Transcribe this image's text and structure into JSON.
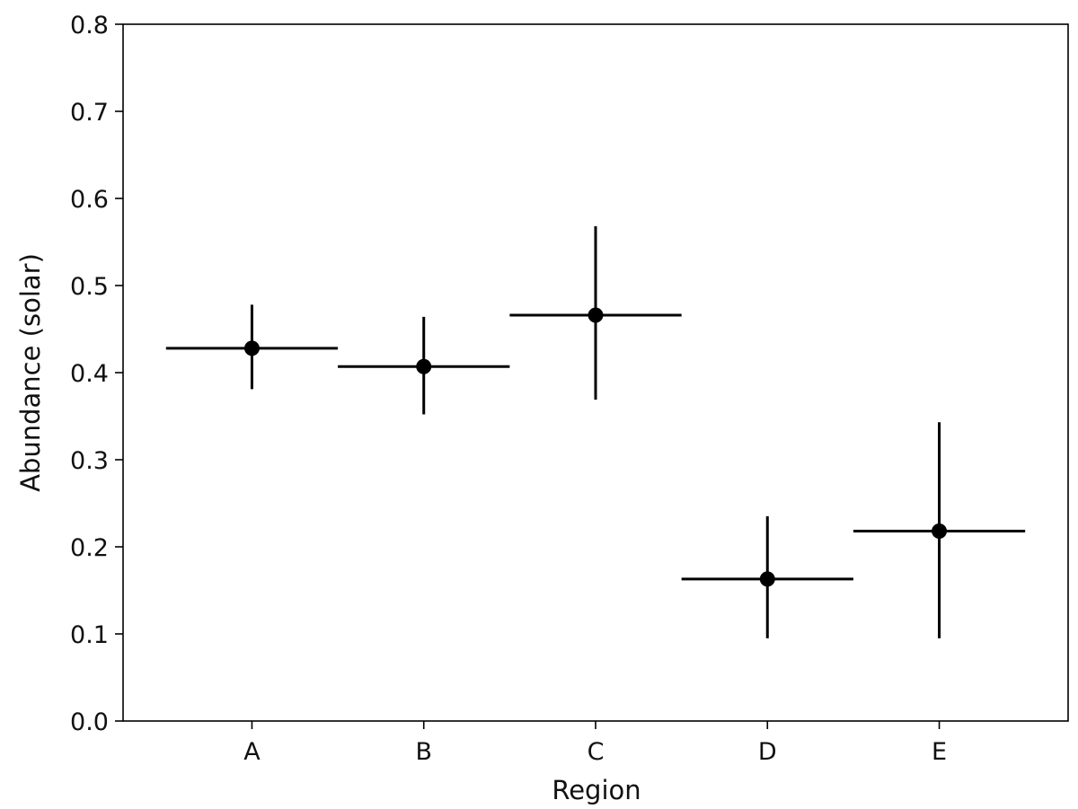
{
  "chart_data": {
    "type": "scatter",
    "title": "",
    "xlabel": "Region",
    "ylabel": "Abundance (solar)",
    "categories": [
      "A",
      "B",
      "C",
      "D",
      "E"
    ],
    "ylim": [
      0.0,
      0.8
    ],
    "yticks": [
      "0.0",
      "0.1",
      "0.2",
      "0.3",
      "0.4",
      "0.5",
      "0.6",
      "0.7",
      "0.8"
    ],
    "grid": false,
    "legend": "none",
    "series": [
      {
        "values": [
          0.428,
          0.407,
          0.466,
          0.163,
          0.218
        ],
        "y_err_lower": [
          0.047,
          0.055,
          0.097,
          0.068,
          0.123
        ],
        "y_err_upper": [
          0.05,
          0.057,
          0.102,
          0.072,
          0.125
        ],
        "x_err_half_width": [
          0.5,
          0.5,
          0.5,
          0.5,
          0.5
        ],
        "color": "#000000"
      }
    ]
  }
}
